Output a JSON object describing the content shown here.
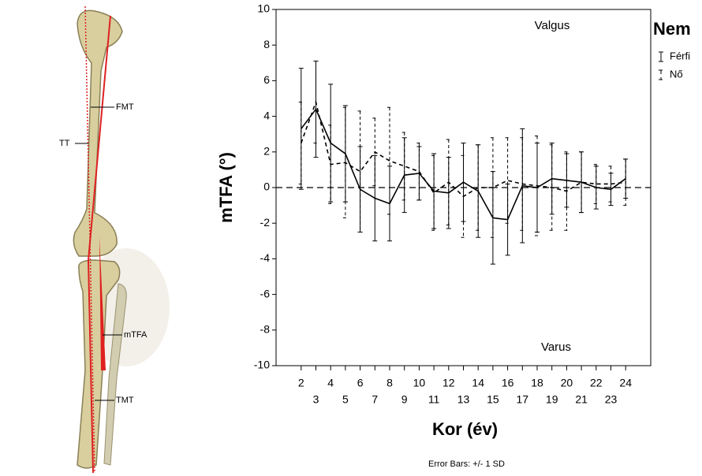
{
  "illustration": {
    "labels": [
      "FMT",
      "TT",
      "mTFA",
      "TMT"
    ]
  },
  "chart_data": {
    "type": "line",
    "y_label": "mTFA (°)",
    "x_label": "Kor (év)",
    "annotations": [
      "Valgus",
      "Varus"
    ],
    "note": "Error Bars: +/- 1 SD",
    "legend_title": "Nem",
    "x": [
      2,
      3,
      4,
      5,
      6,
      7,
      8,
      9,
      10,
      11,
      12,
      13,
      14,
      15,
      16,
      17,
      18,
      19,
      20,
      21,
      22,
      23,
      24
    ],
    "xlim": [
      0.3,
      25.7
    ],
    "xticks": [
      2,
      3,
      4,
      5,
      6,
      7,
      8,
      9,
      10,
      11,
      12,
      13,
      14,
      15,
      16,
      17,
      18,
      19,
      20,
      21,
      22,
      23,
      24
    ],
    "ylim": [
      -10,
      10
    ],
    "yticks": [
      -10,
      -8,
      -6,
      -4,
      -2,
      0,
      2,
      4,
      6,
      8,
      10
    ],
    "reference_line": 0,
    "series": [
      {
        "name": "Férfi",
        "color": "#000000",
        "dashed": false,
        "values": [
          3.3,
          4.4,
          2.5,
          1.9,
          -0.1,
          -0.6,
          -0.9,
          0.7,
          0.8,
          -0.2,
          -0.3,
          0.3,
          -0.2,
          -1.7,
          -1.8,
          0.1,
          0.0,
          0.5,
          0.4,
          0.3,
          0.0,
          -0.1,
          0.5
        ],
        "errors": [
          3.4,
          2.7,
          3.3,
          2.7,
          2.4,
          2.4,
          2.1,
          2.1,
          1.5,
          2.1,
          2.0,
          2.2,
          2.6,
          2.6,
          2.0,
          3.2,
          2.5,
          2.0,
          1.5,
          1.7,
          1.2,
          0.9,
          1.1
        ]
      },
      {
        "name": "Nő",
        "color": "#000000",
        "dashed": true,
        "values": [
          2.5,
          4.8,
          1.3,
          1.4,
          0.9,
          2.0,
          1.5,
          1.2,
          0.9,
          -0.3,
          0.3,
          -0.5,
          0.0,
          0.0,
          0.4,
          0.2,
          0.1,
          0.0,
          -0.2,
          0.3,
          0.2,
          0.2,
          0.3
        ],
        "errors": [
          2.3,
          2.3,
          2.2,
          3.1,
          3.4,
          1.9,
          3.0,
          1.9,
          1.6,
          2.1,
          2.4,
          2.3,
          2.4,
          2.8,
          2.4,
          2.6,
          2.8,
          2.4,
          2.2,
          1.7,
          1.1,
          1.0,
          1.3
        ]
      }
    ]
  }
}
